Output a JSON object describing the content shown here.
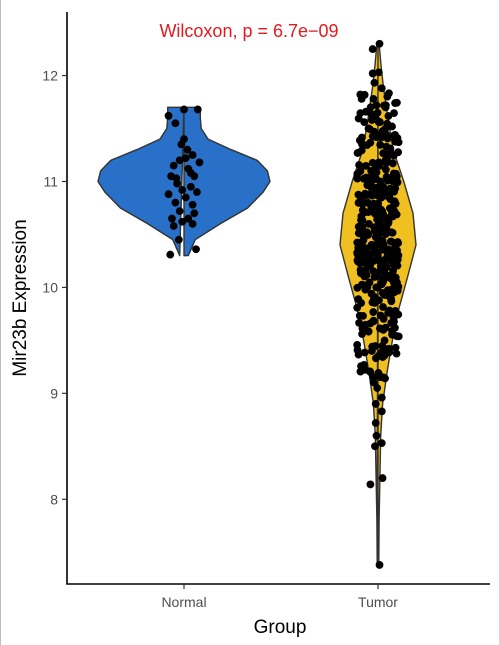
{
  "chart_data": {
    "type": "violin",
    "title": "",
    "xlabel": "Group",
    "ylabel": "Mir23b Expression",
    "categories": [
      "Normal",
      "Tumor"
    ],
    "ylim": [
      7.2,
      12.6
    ],
    "yticks": [
      8,
      9,
      10,
      11,
      12
    ],
    "ytick_labels": [
      "8",
      "9",
      "10",
      "11",
      "12"
    ],
    "grid": false,
    "legend": "none",
    "annotation": {
      "text": "Wilcoxon, p = 6.7e−09",
      "color": "#e41a1c"
    },
    "series": [
      {
        "category": "Normal",
        "fill": "#2870c8",
        "min": 10.3,
        "max": 11.7,
        "density": [
          [
            10.3,
            0.05
          ],
          [
            10.45,
            0.13
          ],
          [
            10.6,
            0.42
          ],
          [
            10.75,
            0.74
          ],
          [
            10.9,
            0.92
          ],
          [
            11.0,
            1.0
          ],
          [
            11.1,
            0.97
          ],
          [
            11.2,
            0.85
          ],
          [
            11.3,
            0.55
          ],
          [
            11.4,
            0.28
          ],
          [
            11.5,
            0.2
          ],
          [
            11.6,
            0.19
          ],
          [
            11.7,
            0.19
          ]
        ],
        "points": [
          [
            -0.18,
            11.62
          ],
          [
            0.0,
            11.68
          ],
          [
            -0.1,
            11.55
          ],
          [
            0.16,
            11.68
          ],
          [
            0.0,
            11.4
          ],
          [
            -0.05,
            11.2
          ],
          [
            0.02,
            11.22
          ],
          [
            0.1,
            11.25
          ],
          [
            -0.12,
            11.15
          ],
          [
            0.05,
            11.12
          ],
          [
            -0.15,
            11.05
          ],
          [
            0.12,
            11.05
          ],
          [
            -0.08,
            10.98
          ],
          [
            0.08,
            10.95
          ],
          [
            -0.02,
            10.92
          ],
          [
            0.15,
            10.9
          ],
          [
            -0.18,
            10.88
          ],
          [
            0.02,
            10.85
          ],
          [
            -0.1,
            10.8
          ],
          [
            0.1,
            10.78
          ],
          [
            -0.05,
            10.72
          ],
          [
            0.12,
            10.7
          ],
          [
            0.18,
            11.18
          ],
          [
            -0.14,
            10.65
          ],
          [
            0.05,
            10.65
          ],
          [
            -0.02,
            10.62
          ],
          [
            0.1,
            10.6
          ],
          [
            -0.12,
            10.58
          ],
          [
            -0.06,
            10.45
          ],
          [
            0.14,
            10.36
          ],
          [
            -0.16,
            10.31
          ],
          [
            0.04,
            11.3
          ],
          [
            -0.03,
            11.35
          ],
          [
            0.08,
            11.08
          ],
          [
            -0.09,
            11.03
          ]
        ]
      },
      {
        "category": "Tumor",
        "fill": "#f0c021",
        "min": 7.38,
        "max": 12.3,
        "density": [
          [
            7.4,
            0.02
          ],
          [
            7.8,
            0.03
          ],
          [
            8.2,
            0.05
          ],
          [
            8.6,
            0.07
          ],
          [
            8.9,
            0.12
          ],
          [
            9.2,
            0.24
          ],
          [
            9.5,
            0.38
          ],
          [
            9.8,
            0.55
          ],
          [
            10.1,
            0.78
          ],
          [
            10.4,
            1.0
          ],
          [
            10.7,
            0.92
          ],
          [
            11.0,
            0.68
          ],
          [
            11.3,
            0.4
          ],
          [
            11.6,
            0.26
          ],
          [
            11.9,
            0.14
          ],
          [
            12.1,
            0.08
          ],
          [
            12.3,
            0.03
          ]
        ],
        "points": [
          [
            0.04,
            12.3
          ],
          [
            -0.14,
            12.25
          ],
          [
            0.02,
            12.03
          ],
          [
            -0.14,
            12.02
          ],
          [
            0.1,
            11.88
          ],
          [
            -0.12,
            11.78
          ],
          [
            -0.04,
            11.72
          ],
          [
            0.2,
            11.7
          ],
          [
            -0.16,
            11.58
          ],
          [
            0.02,
            11.56
          ],
          [
            -0.1,
            11.44
          ],
          [
            0.12,
            11.42
          ],
          [
            -0.18,
            11.1
          ],
          [
            0.07,
            11.0
          ],
          [
            -0.28,
            10.0
          ],
          [
            0.2,
            10.2
          ],
          [
            0.26,
            10.35
          ],
          [
            -0.24,
            10.6
          ],
          [
            -0.2,
            9.66
          ],
          [
            0.2,
            9.62
          ],
          [
            -0.16,
            9.4
          ],
          [
            0.16,
            9.36
          ],
          [
            -0.2,
            9.2
          ],
          [
            0.02,
            9.18
          ],
          [
            -0.12,
            9.15
          ],
          [
            -0.02,
            9.05
          ],
          [
            0.1,
            8.96
          ],
          [
            -0.06,
            8.9
          ],
          [
            0.1,
            8.83
          ],
          [
            -0.06,
            8.72
          ],
          [
            -0.04,
            8.6
          ],
          [
            -0.08,
            8.5
          ],
          [
            0.1,
            8.53
          ],
          [
            0.12,
            8.2
          ],
          [
            -0.2,
            8.14
          ],
          [
            0.04,
            7.38
          ]
        ],
        "cloud": {
          "count": 380,
          "ymin": 9.1,
          "ymax": 11.95,
          "center": 10.4
        }
      }
    ]
  }
}
